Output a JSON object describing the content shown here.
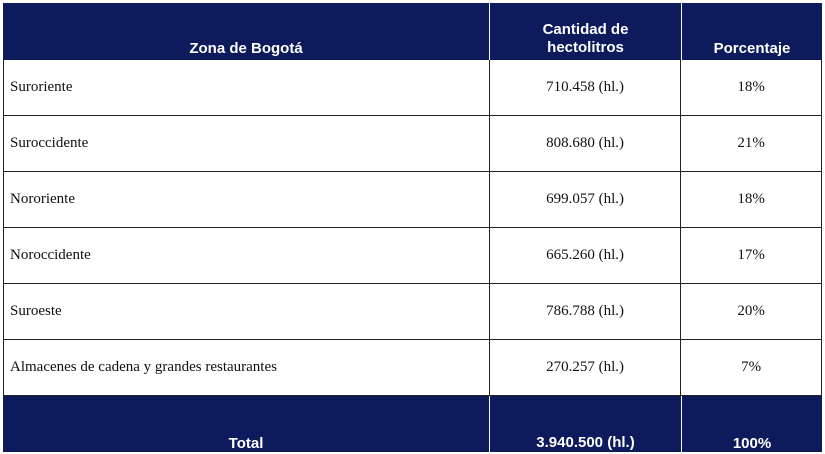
{
  "table": {
    "header": [
      "Zona de Bogotá",
      "Cantidad de hectolitros",
      "Porcentaje"
    ],
    "rows": [
      [
        "Suroriente",
        "710.458 (hl.)",
        "18%"
      ],
      [
        "Suroccidente",
        "808.680 (hl.)",
        "21%"
      ],
      [
        "Nororiente",
        "699.057 (hl.)",
        "18%"
      ],
      [
        "Noroccidente",
        "665.260 (hl.)",
        "17%"
      ],
      [
        "Suroeste",
        "786.788 (hl.)",
        "20%"
      ],
      [
        "Almacenes de cadena y grandes restaurantes",
        "270.257 (hl.)",
        "7%"
      ]
    ],
    "total": [
      "Total",
      "3.940.500 (hl.)",
      "100%"
    ]
  }
}
